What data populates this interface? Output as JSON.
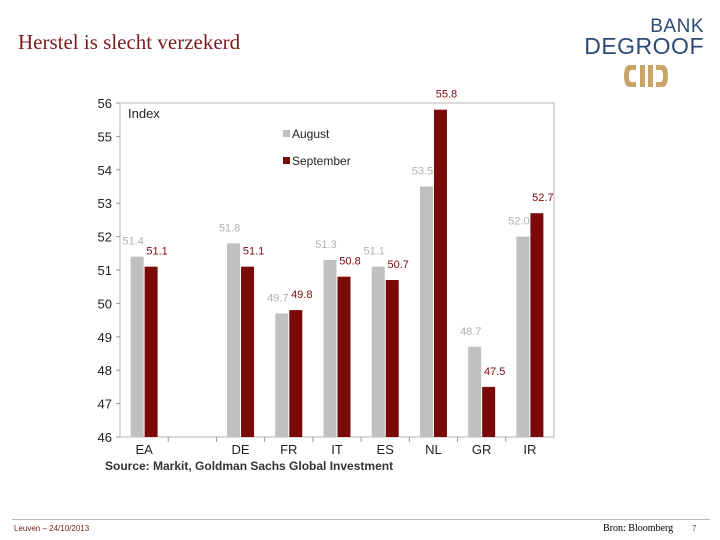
{
  "slide": {
    "title": "Herstel is slecht verzekerd",
    "footer_left": "Leuven – 24/10/2013",
    "footer_source": "Bron: Bloomberg",
    "page_number": "7"
  },
  "logo": {
    "line1": "BANK",
    "line2": "DEGROOF",
    "icon": "degroof-emblem-icon",
    "text_color": "#2e4a75",
    "emblem_color": "#c8a46a"
  },
  "chart_data": {
    "type": "bar",
    "title": "",
    "index_label": "Index",
    "source_label": "Source: Markit, Goldman Sachs Global Investment",
    "categories": [
      "EA",
      "",
      "DE",
      "FR",
      "IT",
      "ES",
      "NL",
      "GR",
      "IR"
    ],
    "series": [
      {
        "name": "August",
        "color": "#c0c0c0",
        "label_color": "#b0b0b0",
        "values": [
          51.4,
          null,
          51.8,
          49.7,
          51.3,
          51.1,
          53.5,
          48.7,
          52.0
        ],
        "labels": [
          "51.4",
          "",
          "51.8",
          "49.7",
          "51.3",
          "51.1",
          "53.5",
          "48.7",
          "52.0"
        ]
      },
      {
        "name": "September",
        "color": "#7a0a0a",
        "label_color": "#7a0a0a",
        "values": [
          51.1,
          null,
          51.1,
          49.8,
          50.8,
          50.7,
          55.8,
          47.5,
          52.7
        ],
        "labels": [
          "51.1",
          "",
          "51.1",
          "49.8",
          "50.8",
          "50.7",
          "55.8",
          "47.5",
          "52.7"
        ]
      }
    ],
    "ylim": [
      46,
      56
    ],
    "yticks": [
      "46",
      "47",
      "48",
      "49",
      "50",
      "51",
      "52",
      "53",
      "54",
      "55",
      "56"
    ],
    "grid": false,
    "legend": "top-center"
  }
}
